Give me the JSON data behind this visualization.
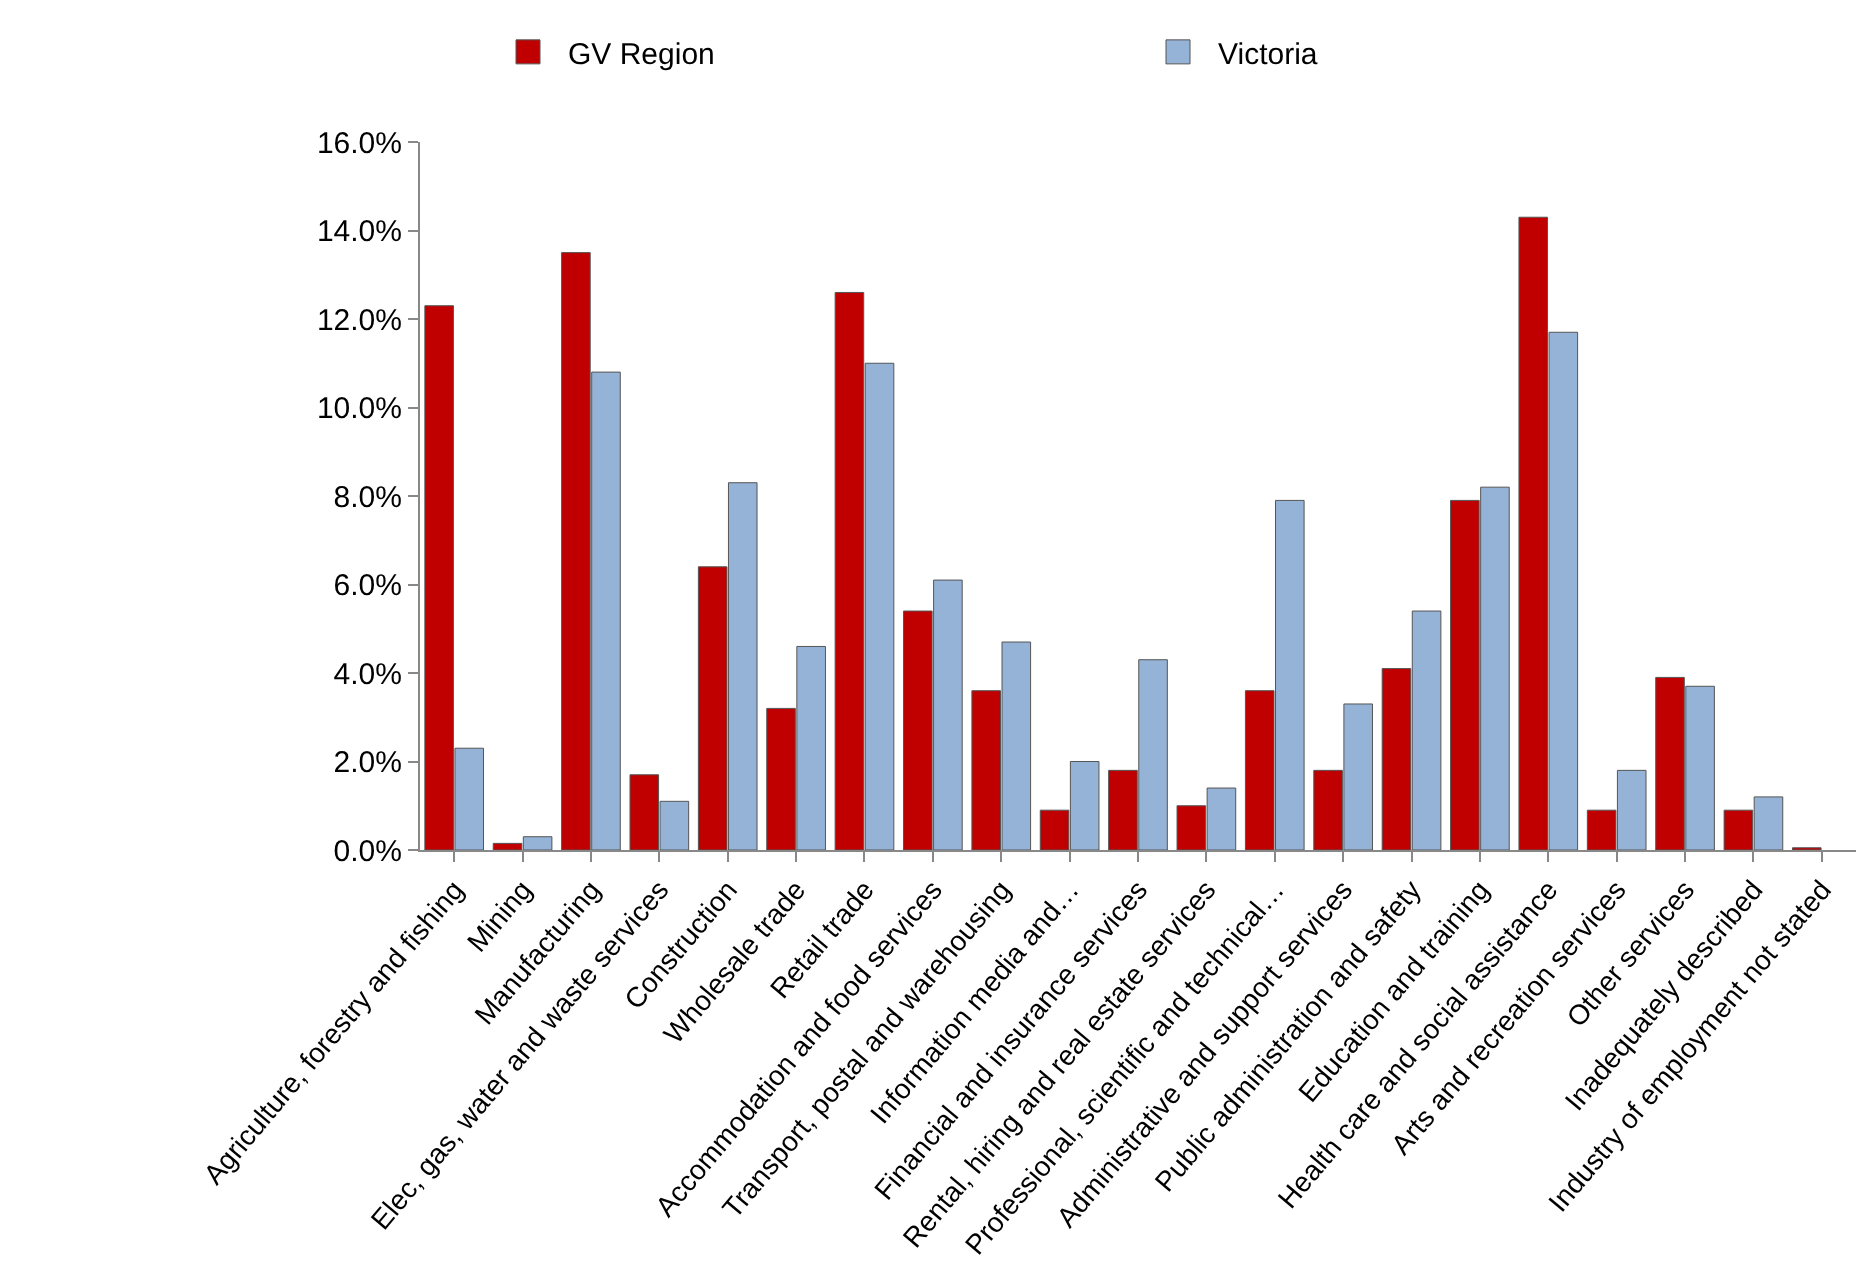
{
  "chart_data": {
    "type": "bar",
    "categories": [
      "Agriculture, forestry and fishing",
      "Mining",
      "Manufacturing",
      "Elec, gas, water and waste services",
      "Construction",
      "Wholesale trade",
      "Retail trade",
      "Accommodation and food services",
      "Transport, postal and warehousing",
      "Information media and…",
      "Financial and insurance services",
      "Rental, hiring and real estate services",
      "Professional, scientific and technical…",
      "Administrative and support services",
      "Public administration and safety",
      "Education and training",
      "Health care and social assistance",
      "Arts and recreation services",
      "Other services",
      "Inadequately described",
      "Industry of employment not stated"
    ],
    "series": [
      {
        "name": "GV Region",
        "color": "#c00000",
        "values": [
          12.3,
          0.15,
          13.5,
          1.7,
          6.4,
          3.2,
          12.6,
          5.4,
          3.6,
          0.9,
          1.8,
          1.0,
          3.6,
          1.8,
          4.1,
          7.9,
          14.3,
          0.9,
          3.9,
          0.9,
          0.05
        ]
      },
      {
        "name": "Victoria",
        "color": "#95b3d7",
        "values": [
          2.3,
          0.3,
          10.8,
          1.1,
          8.3,
          4.6,
          11.0,
          6.1,
          4.7,
          2.0,
          4.3,
          1.4,
          7.9,
          3.3,
          5.4,
          8.2,
          11.7,
          1.8,
          3.7,
          1.2,
          null
        ]
      }
    ],
    "ylim": [
      0,
      16
    ],
    "yticks": [
      {
        "value": 0,
        "label": "0.0%"
      },
      {
        "value": 2,
        "label": "2.0%"
      },
      {
        "value": 4,
        "label": "4.0%"
      },
      {
        "value": 6,
        "label": "6.0%"
      },
      {
        "value": 8,
        "label": "8.0%"
      },
      {
        "value": 10,
        "label": "10.0%"
      },
      {
        "value": 12,
        "label": "12.0%"
      },
      {
        "value": 14,
        "label": "14.0%"
      },
      {
        "value": 16,
        "label": "16.0%"
      }
    ],
    "grid": false,
    "legend": "top"
  }
}
